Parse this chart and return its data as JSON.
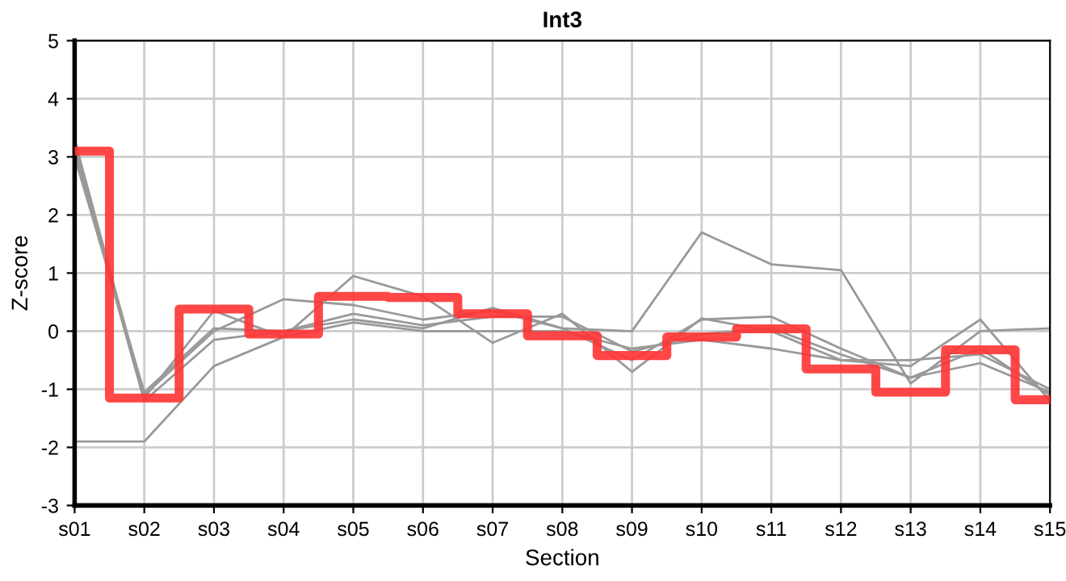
{
  "chart_data": {
    "type": "line",
    "title": "Int3",
    "xlabel": "Section",
    "ylabel": "Z-score",
    "categories": [
      "s01",
      "s02",
      "s03",
      "s04",
      "s05",
      "s06",
      "s07",
      "s08",
      "s09",
      "s10",
      "s11",
      "s12",
      "s13",
      "s14",
      "s15"
    ],
    "ylim": [
      -3,
      5
    ],
    "yticks": [
      -3,
      -2,
      -1,
      0,
      1,
      2,
      3,
      4,
      5
    ],
    "grid": true,
    "legend": false,
    "series": [
      {
        "color": "#999999",
        "values": [
          3.2,
          -1.1,
          0.0,
          0.55,
          0.45,
          0.2,
          0.35,
          0.05,
          -0.5,
          0.2,
          0.25,
          -0.3,
          -0.8,
          -0.3,
          -1.1
        ]
      },
      {
        "color": "#999999",
        "values": [
          3.3,
          -1.15,
          0.35,
          -0.1,
          0.95,
          0.6,
          -0.2,
          0.3,
          -0.7,
          0.22,
          0.0,
          -0.5,
          -0.6,
          0.2,
          -1.2
        ]
      },
      {
        "color": "#999999",
        "values": [
          3.1,
          -1.2,
          -0.15,
          0.0,
          0.2,
          0.05,
          0.4,
          0.05,
          0.0,
          1.7,
          1.15,
          1.05,
          -0.9,
          0.0,
          0.05
        ]
      },
      {
        "color": "#999999",
        "values": [
          3.0,
          -1.05,
          0.05,
          0.0,
          0.3,
          0.1,
          0.25,
          0.25,
          -0.35,
          -0.05,
          0.05,
          -0.4,
          -0.8,
          -0.55,
          -1.05
        ]
      },
      {
        "color": "#999999",
        "values": [
          -1.9,
          -1.9,
          -0.6,
          -0.1,
          0.15,
          0.0,
          0.0,
          0.0,
          -0.3,
          -0.15,
          -0.3,
          -0.5,
          -0.5,
          -0.4,
          -1.0
        ]
      },
      {
        "type": "step",
        "color": "#ff3333",
        "values": [
          3.1,
          -1.15,
          0.38,
          -0.05,
          0.6,
          0.58,
          0.3,
          -0.08,
          -0.42,
          -0.1,
          0.04,
          -0.65,
          -1.05,
          -0.32,
          -1.18
        ]
      }
    ]
  }
}
